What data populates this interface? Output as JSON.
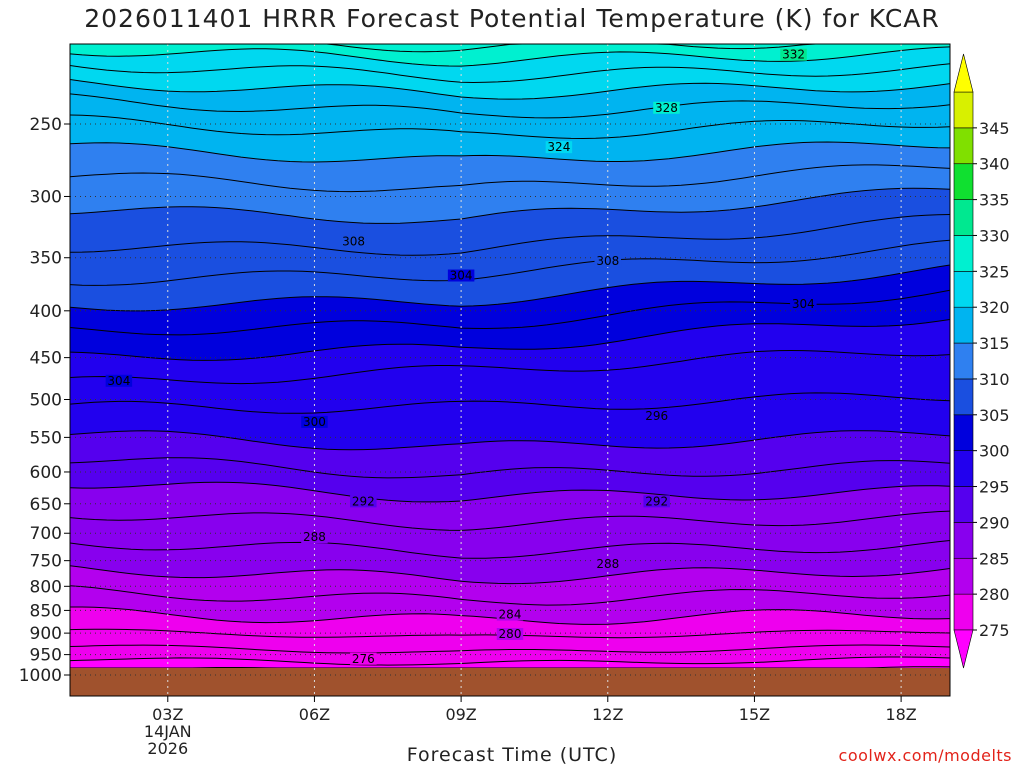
{
  "title": "2026011401 HRRR Forecast Potential Temperature (K) for KCAR",
  "xlabel": "Forecast Time (UTC)",
  "credit": "coolwx.com/modelts",
  "chart_data": {
    "type": "heatmap",
    "title": "2026011401 HRRR Forecast Potential Temperature (K) for KCAR",
    "xlabel": "Forecast Time (UTC)",
    "ylabel": "",
    "x_range_hours": [
      1,
      19
    ],
    "x_ticks": [
      {
        "hour": 3,
        "label": "03Z",
        "sub1": "14JAN",
        "sub2": "2026"
      },
      {
        "hour": 6,
        "label": "06Z"
      },
      {
        "hour": 9,
        "label": "09Z"
      },
      {
        "hour": 12,
        "label": "12Z"
      },
      {
        "hour": 15,
        "label": "15Z"
      },
      {
        "hour": 18,
        "label": "18Z"
      }
    ],
    "y_axis_pressure_hpa": [
      1000,
      950,
      900,
      850,
      800,
      750,
      700,
      650,
      600,
      550,
      500,
      450,
      400,
      350,
      300,
      250
    ],
    "y_range_hpa": [
      1000,
      200
    ],
    "colorbar_levels": [
      275,
      280,
      285,
      290,
      295,
      300,
      305,
      310,
      315,
      320,
      325,
      330,
      335,
      340,
      345
    ],
    "colorbar_colors": [
      "#ee00ee",
      "#b300ee",
      "#8800ee",
      "#5500ee",
      "#2200ee",
      "#0000dd",
      "#1a4fe0",
      "#2f80f0",
      "#00b4f0",
      "#00d8f0",
      "#00f0d0",
      "#00e890",
      "#10e030",
      "#80e000",
      "#d8f000"
    ],
    "below_min_color": "#ff00ff",
    "above_max_color": "#ffff00",
    "ground_color": "#a0522d",
    "contour_labels": [
      {
        "value": 332,
        "hour": 15.8,
        "p": 210
      },
      {
        "value": 328,
        "hour": 13.2,
        "p": 240
      },
      {
        "value": 324,
        "hour": 11.0,
        "p": 265
      },
      {
        "value": 308,
        "hour": 6.8,
        "p": 336
      },
      {
        "value": 308,
        "hour": 12.0,
        "p": 353
      },
      {
        "value": 304,
        "hour": 9.0,
        "p": 366
      },
      {
        "value": 304,
        "hour": 16.0,
        "p": 393
      },
      {
        "value": 304,
        "hour": 2.0,
        "p": 477
      },
      {
        "value": 300,
        "hour": 6.0,
        "p": 529
      },
      {
        "value": 296,
        "hour": 13.0,
        "p": 521
      },
      {
        "value": 292,
        "hour": 7.0,
        "p": 646
      },
      {
        "value": 292,
        "hour": 13.0,
        "p": 646
      },
      {
        "value": 288,
        "hour": 6.0,
        "p": 707
      },
      {
        "value": 288,
        "hour": 12.0,
        "p": 756
      },
      {
        "value": 284,
        "hour": 10.0,
        "p": 859
      },
      {
        "value": 280,
        "hour": 10.0,
        "p": 902
      },
      {
        "value": 276,
        "hour": 7.0,
        "p": 960
      }
    ]
  }
}
